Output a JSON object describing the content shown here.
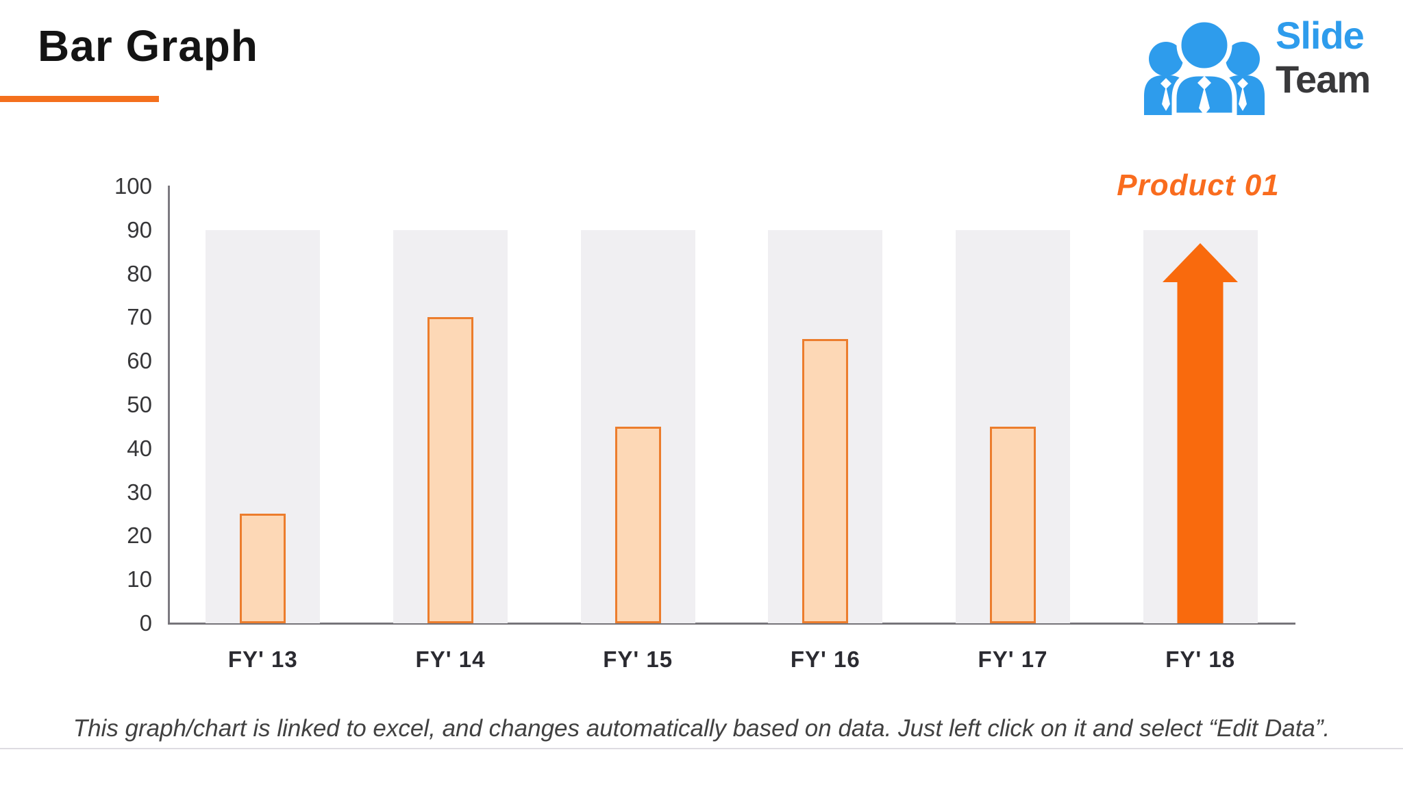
{
  "slide": {
    "title": "Bar Graph",
    "caption": "This graph/chart is linked to excel, and changes automatically based on data. Just left click on it and select “Edit Data”."
  },
  "logo": {
    "line1": "Slide",
    "line2": "Team",
    "icon": "team-people-icon",
    "blue": "#2E9CEC",
    "dark": "#39393B"
  },
  "annotation": {
    "label": "Product 01",
    "color": "#F96C1E"
  },
  "chart_data": {
    "type": "bar",
    "title": "",
    "xlabel": "",
    "ylabel": "",
    "categories": [
      "FY'  13",
      "FY'  14",
      "FY'  15",
      "FY'  16",
      "FY'  17",
      "FY'  18"
    ],
    "series": [
      {
        "name": "Product 01",
        "values": [
          25,
          70,
          45,
          65,
          45,
          87
        ]
      }
    ],
    "last_point_style": "up-arrow",
    "background_band_value": 90,
    "ylim": [
      0,
      100
    ],
    "yticks": [
      0,
      10,
      20,
      30,
      40,
      50,
      60,
      70,
      80,
      90,
      100
    ],
    "grid": false,
    "legend_position": "none",
    "colors": {
      "bar_fill": "#FDD8B6",
      "bar_border": "#EC7D2D",
      "band": "#F0EFF2",
      "arrow": "#F96A0D",
      "axis": "#76747A"
    }
  }
}
